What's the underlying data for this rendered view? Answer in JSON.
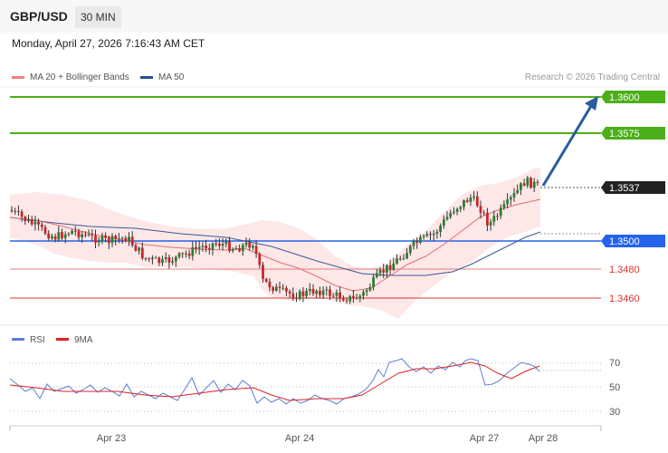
{
  "header": {
    "symbol": "GBP/USD",
    "timeframe": "30 MIN"
  },
  "datetime": "Monday, April 27, 2026 7:16:43 AM CET",
  "legend": [
    {
      "label": "MA 20 + Bollinger Bands",
      "color": "#f08080"
    },
    {
      "label": "MA 50",
      "color": "#2a4f8f"
    }
  ],
  "copyright": "Research © 2026 Trading Central",
  "price_levels": [
    {
      "value": "1.3600",
      "kind": "resistance",
      "color": "#4caf1a"
    },
    {
      "value": "1.3575",
      "kind": "resistance",
      "color": "#4caf1a"
    },
    {
      "value": "1.3537",
      "kind": "current",
      "color": "#222222"
    },
    {
      "value": "1.3500",
      "kind": "pivot",
      "color": "#2563eb"
    },
    {
      "value": "1.3480",
      "kind": "support",
      "color": "#e03030"
    },
    {
      "value": "1.3460",
      "kind": "support",
      "color": "#e03030"
    }
  ],
  "rsi_legend": [
    {
      "label": "RSI",
      "color": "#5b7fd6"
    },
    {
      "label": "9MA",
      "color": "#e02020"
    }
  ],
  "rsi_levels": [
    "70",
    "50",
    "30"
  ],
  "x_labels": [
    "Apr 23",
    "Apr 24",
    "Apr 27",
    "Apr 28"
  ]
}
